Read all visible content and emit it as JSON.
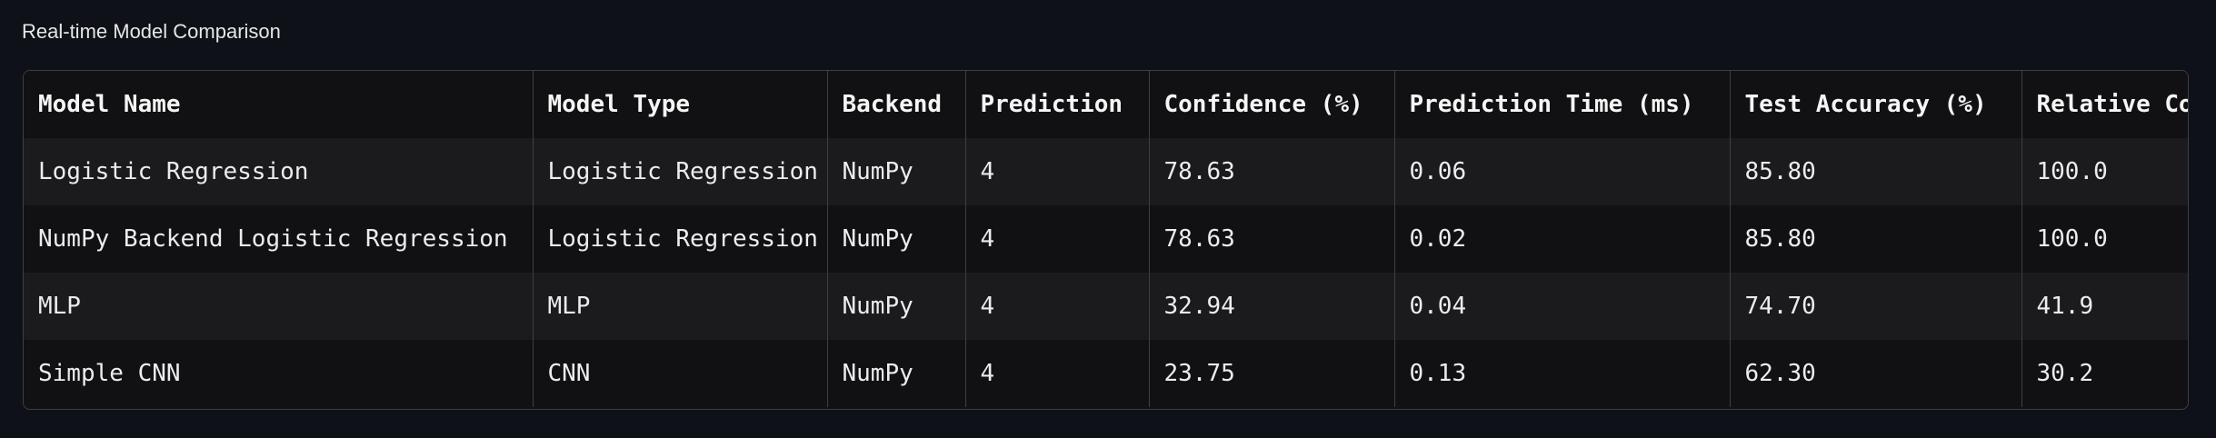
{
  "caption": "Real-time Model Comparison",
  "table": {
    "columns": [
      "Model Name",
      "Model Type",
      "Backend",
      "Prediction",
      "Confidence (%)",
      "Prediction Time (ms)",
      "Test Accuracy (%)",
      "Relative Confidence"
    ],
    "rows": [
      [
        "Logistic Regression",
        "Logistic Regression",
        "NumPy",
        "4",
        "78.63",
        "0.06",
        "85.80",
        "100.0"
      ],
      [
        "NumPy Backend Logistic Regression",
        "Logistic Regression",
        "NumPy",
        "4",
        "78.63",
        "0.02",
        "85.80",
        "100.0"
      ],
      [
        "MLP",
        "MLP",
        "NumPy",
        "4",
        "32.94",
        "0.04",
        "74.70",
        "41.9"
      ],
      [
        "Simple CNN",
        "CNN",
        "NumPy",
        "4",
        "23.75",
        "0.13",
        "62.30",
        "30.2"
      ]
    ]
  }
}
